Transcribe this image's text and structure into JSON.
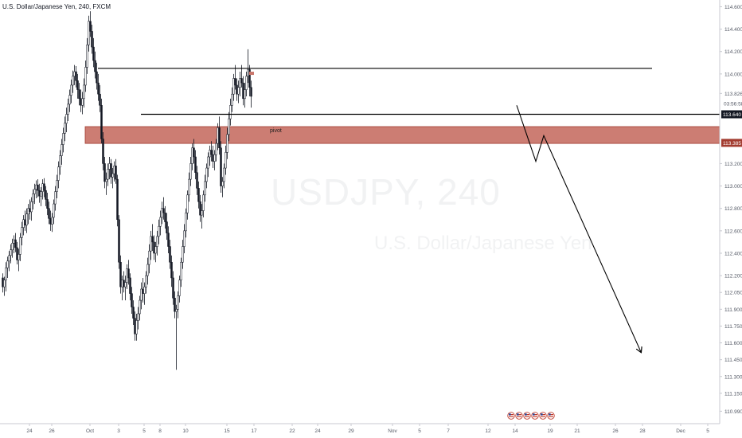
{
  "header": {
    "title": "U.S. Dollar/Japanese Yen, 240, FXCM"
  },
  "watermark": {
    "symbol": "USDJPY, 240",
    "description": "U.S. Dollar/Japanese Yen"
  },
  "colors": {
    "up": "#131722",
    "down": "#131722",
    "zone_fill": "#c9766b",
    "zone_border": "#a23b2f",
    "price_tag_dark": "#131722",
    "price_tag_red": "#a23b2f",
    "axis_text": "#555a66",
    "line": "#000000"
  },
  "chart_data": {
    "type": "candlestick",
    "title": "U.S. Dollar/Japanese Yen, 240, FXCM",
    "xlabel": "",
    "ylabel": "",
    "ylim": [
      110.95,
      114.66
    ],
    "y_ticks": [
      "114.600",
      "114.400",
      "114.200",
      "114.000",
      "113.826",
      "113.200",
      "113.000",
      "112.800",
      "112.600",
      "112.400",
      "112.200",
      "112.050",
      "111.900",
      "111.750",
      "111.600",
      "111.450",
      "111.300",
      "111.150",
      "110.990"
    ],
    "y_tick_values": [
      114.6,
      114.4,
      114.2,
      114.0,
      113.826,
      113.2,
      113.0,
      112.8,
      112.6,
      112.4,
      112.2,
      112.05,
      111.9,
      111.75,
      111.6,
      111.45,
      111.3,
      111.15,
      110.99
    ],
    "x_ticks": [
      "24",
      "26",
      "Oct",
      "3",
      "5",
      "8",
      "10",
      "15",
      "17",
      "22",
      "24",
      "29",
      "Nov",
      "5",
      "7",
      "12",
      "14",
      "19",
      "21",
      "26",
      "28",
      "Dec",
      "5"
    ],
    "x_tick_index": [
      17,
      31,
      55,
      73,
      89,
      99,
      115,
      141,
      158,
      182,
      198,
      219,
      245,
      262,
      280,
      305,
      322,
      344,
      361,
      385,
      402,
      426,
      443
    ],
    "price_labels": {
      "countdown": "03:56:58",
      "current": "113.640",
      "current_value": 113.64,
      "pivot_tag": "113.385",
      "pivot_value": 113.385
    },
    "pivot_zone": {
      "label": "pivot",
      "low": 113.38,
      "high": 113.53,
      "start_index": 52
    },
    "resistance_line": {
      "value": 114.05,
      "start_index": 60,
      "end_index": 408
    },
    "support_line": {
      "value": 113.64,
      "start_index": 87
    },
    "projection_path": [
      {
        "index": 323,
        "price": 113.72
      },
      {
        "index": 335,
        "price": 113.22
      },
      {
        "index": 340,
        "price": 113.45
      },
      {
        "index": 401,
        "price": 111.52
      }
    ],
    "candles": [
      {
        "o": 112.18,
        "h": 112.22,
        "l": 112.05,
        "c": 112.1
      },
      {
        "o": 112.1,
        "h": 112.19,
        "l": 112.02,
        "c": 112.16
      },
      {
        "o": 112.16,
        "h": 112.32,
        "l": 112.06,
        "c": 112.27
      },
      {
        "o": 112.27,
        "h": 112.37,
        "l": 112.18,
        "c": 112.33
      },
      {
        "o": 112.33,
        "h": 112.42,
        "l": 112.24,
        "c": 112.38
      },
      {
        "o": 112.38,
        "h": 112.48,
        "l": 112.31,
        "c": 112.43
      },
      {
        "o": 112.43,
        "h": 112.53,
        "l": 112.36,
        "c": 112.49
      },
      {
        "o": 112.49,
        "h": 112.56,
        "l": 112.4,
        "c": 112.52
      },
      {
        "o": 112.52,
        "h": 112.58,
        "l": 112.41,
        "c": 112.45
      },
      {
        "o": 112.45,
        "h": 112.5,
        "l": 112.3,
        "c": 112.34
      },
      {
        "o": 112.34,
        "h": 112.44,
        "l": 112.24,
        "c": 112.39
      },
      {
        "o": 112.39,
        "h": 112.58,
        "l": 112.33,
        "c": 112.54
      },
      {
        "o": 112.54,
        "h": 112.68,
        "l": 112.47,
        "c": 112.63
      },
      {
        "o": 112.63,
        "h": 112.74,
        "l": 112.56,
        "c": 112.7
      },
      {
        "o": 112.7,
        "h": 112.78,
        "l": 112.6,
        "c": 112.65
      },
      {
        "o": 112.65,
        "h": 112.8,
        "l": 112.58,
        "c": 112.75
      },
      {
        "o": 112.75,
        "h": 112.84,
        "l": 112.66,
        "c": 112.8
      },
      {
        "o": 112.8,
        "h": 112.88,
        "l": 112.7,
        "c": 112.77
      },
      {
        "o": 112.77,
        "h": 112.9,
        "l": 112.69,
        "c": 112.86
      },
      {
        "o": 112.86,
        "h": 112.97,
        "l": 112.79,
        "c": 112.93
      },
      {
        "o": 112.93,
        "h": 113.02,
        "l": 112.84,
        "c": 112.97
      },
      {
        "o": 112.97,
        "h": 113.05,
        "l": 112.89,
        "c": 113.01
      },
      {
        "o": 113.01,
        "h": 113.06,
        "l": 112.9,
        "c": 112.96
      },
      {
        "o": 112.96,
        "h": 113.02,
        "l": 112.85,
        "c": 112.91
      },
      {
        "o": 112.91,
        "h": 112.99,
        "l": 112.82,
        "c": 112.95
      },
      {
        "o": 112.95,
        "h": 113.06,
        "l": 112.88,
        "c": 113.02
      },
      {
        "o": 113.02,
        "h": 113.07,
        "l": 112.9,
        "c": 112.96
      },
      {
        "o": 112.96,
        "h": 113.0,
        "l": 112.82,
        "c": 112.88
      },
      {
        "o": 112.88,
        "h": 112.94,
        "l": 112.74,
        "c": 112.8
      },
      {
        "o": 112.8,
        "h": 112.86,
        "l": 112.66,
        "c": 112.71
      },
      {
        "o": 112.71,
        "h": 112.78,
        "l": 112.6,
        "c": 112.66
      },
      {
        "o": 112.66,
        "h": 112.76,
        "l": 112.59,
        "c": 112.72
      },
      {
        "o": 112.72,
        "h": 112.88,
        "l": 112.66,
        "c": 112.84
      },
      {
        "o": 112.84,
        "h": 113.0,
        "l": 112.78,
        "c": 112.95
      },
      {
        "o": 112.95,
        "h": 113.1,
        "l": 112.89,
        "c": 113.05
      },
      {
        "o": 113.05,
        "h": 113.22,
        "l": 112.98,
        "c": 113.17
      },
      {
        "o": 113.17,
        "h": 113.32,
        "l": 113.1,
        "c": 113.27
      },
      {
        "o": 113.27,
        "h": 113.42,
        "l": 113.19,
        "c": 113.37
      },
      {
        "o": 113.37,
        "h": 113.52,
        "l": 113.3,
        "c": 113.47
      },
      {
        "o": 113.47,
        "h": 113.62,
        "l": 113.4,
        "c": 113.56
      },
      {
        "o": 113.56,
        "h": 113.7,
        "l": 113.48,
        "c": 113.64
      },
      {
        "o": 113.64,
        "h": 113.78,
        "l": 113.58,
        "c": 113.73
      },
      {
        "o": 113.73,
        "h": 113.86,
        "l": 113.66,
        "c": 113.81
      },
      {
        "o": 113.81,
        "h": 113.95,
        "l": 113.74,
        "c": 113.9
      },
      {
        "o": 113.9,
        "h": 114.03,
        "l": 113.83,
        "c": 113.98
      },
      {
        "o": 113.98,
        "h": 114.08,
        "l": 113.9,
        "c": 114.02
      },
      {
        "o": 114.02,
        "h": 114.07,
        "l": 113.88,
        "c": 113.94
      },
      {
        "o": 113.94,
        "h": 114.0,
        "l": 113.78,
        "c": 113.86
      },
      {
        "o": 113.86,
        "h": 113.92,
        "l": 113.72,
        "c": 113.78
      },
      {
        "o": 113.78,
        "h": 113.86,
        "l": 113.66,
        "c": 113.72
      },
      {
        "o": 113.72,
        "h": 113.84,
        "l": 113.64,
        "c": 113.78
      },
      {
        "o": 113.78,
        "h": 113.96,
        "l": 113.7,
        "c": 113.9
      },
      {
        "o": 113.9,
        "h": 114.12,
        "l": 113.84,
        "c": 114.06
      },
      {
        "o": 114.06,
        "h": 114.32,
        "l": 114.0,
        "c": 114.26
      },
      {
        "o": 114.26,
        "h": 114.52,
        "l": 114.2,
        "c": 114.47
      },
      {
        "o": 114.47,
        "h": 114.56,
        "l": 114.33,
        "c": 114.38
      },
      {
        "o": 114.38,
        "h": 114.44,
        "l": 114.18,
        "c": 114.24
      },
      {
        "o": 114.24,
        "h": 114.32,
        "l": 114.06,
        "c": 114.12
      },
      {
        "o": 114.12,
        "h": 114.2,
        "l": 113.96,
        "c": 114.02
      },
      {
        "o": 114.02,
        "h": 114.1,
        "l": 113.86,
        "c": 113.92
      },
      {
        "o": 113.92,
        "h": 114.0,
        "l": 113.76,
        "c": 113.82
      },
      {
        "o": 113.82,
        "h": 113.9,
        "l": 113.66,
        "c": 113.72
      },
      {
        "o": 113.72,
        "h": 113.78,
        "l": 113.38,
        "c": 113.42
      },
      {
        "o": 113.42,
        "h": 113.48,
        "l": 113.14,
        "c": 113.2
      },
      {
        "o": 113.2,
        "h": 113.26,
        "l": 112.98,
        "c": 113.04
      },
      {
        "o": 113.04,
        "h": 113.12,
        "l": 112.92,
        "c": 113.06
      },
      {
        "o": 113.06,
        "h": 113.2,
        "l": 113.0,
        "c": 113.15
      },
      {
        "o": 113.15,
        "h": 113.26,
        "l": 113.06,
        "c": 113.2
      },
      {
        "o": 113.2,
        "h": 113.24,
        "l": 113.02,
        "c": 113.08
      },
      {
        "o": 113.08,
        "h": 113.16,
        "l": 112.98,
        "c": 113.11
      },
      {
        "o": 113.11,
        "h": 113.22,
        "l": 113.04,
        "c": 113.18
      },
      {
        "o": 113.18,
        "h": 113.24,
        "l": 113.02,
        "c": 113.06
      },
      {
        "o": 113.06,
        "h": 113.1,
        "l": 112.64,
        "c": 112.7
      },
      {
        "o": 112.7,
        "h": 112.74,
        "l": 112.26,
        "c": 112.32
      },
      {
        "o": 112.32,
        "h": 112.38,
        "l": 112.04,
        "c": 112.1
      },
      {
        "o": 112.1,
        "h": 112.2,
        "l": 111.98,
        "c": 112.16
      },
      {
        "o": 112.16,
        "h": 112.24,
        "l": 112.05,
        "c": 112.1
      },
      {
        "o": 112.1,
        "h": 112.2,
        "l": 111.98,
        "c": 112.14
      },
      {
        "o": 112.14,
        "h": 112.3,
        "l": 112.08,
        "c": 112.26
      },
      {
        "o": 112.26,
        "h": 112.34,
        "l": 112.12,
        "c": 112.18
      },
      {
        "o": 112.18,
        "h": 112.22,
        "l": 111.98,
        "c": 112.04
      },
      {
        "o": 112.04,
        "h": 112.1,
        "l": 111.86,
        "c": 111.92
      },
      {
        "o": 111.92,
        "h": 111.98,
        "l": 111.76,
        "c": 111.82
      },
      {
        "o": 111.82,
        "h": 111.88,
        "l": 111.62,
        "c": 111.68
      },
      {
        "o": 111.68,
        "h": 111.86,
        "l": 111.62,
        "c": 111.8
      },
      {
        "o": 111.8,
        "h": 111.92,
        "l": 111.72,
        "c": 111.86
      },
      {
        "o": 111.86,
        "h": 112.02,
        "l": 111.8,
        "c": 111.98
      },
      {
        "o": 111.98,
        "h": 112.14,
        "l": 111.9,
        "c": 112.08
      },
      {
        "o": 112.08,
        "h": 112.18,
        "l": 111.96,
        "c": 112.04
      },
      {
        "o": 112.04,
        "h": 112.14,
        "l": 111.94,
        "c": 112.1
      },
      {
        "o": 112.1,
        "h": 112.24,
        "l": 112.04,
        "c": 112.2
      },
      {
        "o": 112.2,
        "h": 112.36,
        "l": 112.12,
        "c": 112.3
      },
      {
        "o": 112.3,
        "h": 112.48,
        "l": 112.22,
        "c": 112.42
      },
      {
        "o": 112.42,
        "h": 112.6,
        "l": 112.34,
        "c": 112.55
      },
      {
        "o": 112.55,
        "h": 112.66,
        "l": 112.42,
        "c": 112.5
      },
      {
        "o": 112.5,
        "h": 112.56,
        "l": 112.34,
        "c": 112.4
      },
      {
        "o": 112.4,
        "h": 112.5,
        "l": 112.32,
        "c": 112.46
      },
      {
        "o": 112.46,
        "h": 112.6,
        "l": 112.38,
        "c": 112.55
      },
      {
        "o": 112.55,
        "h": 112.7,
        "l": 112.48,
        "c": 112.64
      },
      {
        "o": 112.64,
        "h": 112.78,
        "l": 112.56,
        "c": 112.72
      },
      {
        "o": 112.72,
        "h": 112.86,
        "l": 112.66,
        "c": 112.8
      },
      {
        "o": 112.8,
        "h": 112.9,
        "l": 112.7,
        "c": 112.76
      },
      {
        "o": 112.76,
        "h": 112.82,
        "l": 112.62,
        "c": 112.68
      },
      {
        "o": 112.68,
        "h": 112.76,
        "l": 112.52,
        "c": 112.58
      },
      {
        "o": 112.58,
        "h": 112.64,
        "l": 112.4,
        "c": 112.46
      },
      {
        "o": 112.46,
        "h": 112.52,
        "l": 112.26,
        "c": 112.32
      },
      {
        "o": 112.32,
        "h": 112.38,
        "l": 112.1,
        "c": 112.18
      },
      {
        "o": 112.18,
        "h": 112.24,
        "l": 111.94,
        "c": 112.0
      },
      {
        "o": 112.0,
        "h": 112.06,
        "l": 111.82,
        "c": 111.88
      },
      {
        "o": 111.88,
        "h": 111.94,
        "l": 111.36,
        "c": 111.9
      },
      {
        "o": 111.9,
        "h": 112.06,
        "l": 111.82,
        "c": 112.02
      },
      {
        "o": 112.02,
        "h": 112.2,
        "l": 111.96,
        "c": 112.16
      },
      {
        "o": 112.16,
        "h": 112.36,
        "l": 112.1,
        "c": 112.32
      },
      {
        "o": 112.32,
        "h": 112.52,
        "l": 112.26,
        "c": 112.46
      },
      {
        "o": 112.46,
        "h": 112.66,
        "l": 112.4,
        "c": 112.6
      },
      {
        "o": 112.6,
        "h": 112.8,
        "l": 112.54,
        "c": 112.76
      },
      {
        "o": 112.76,
        "h": 112.96,
        "l": 112.7,
        "c": 112.92
      },
      {
        "o": 112.92,
        "h": 113.12,
        "l": 112.86,
        "c": 113.06
      },
      {
        "o": 113.06,
        "h": 113.26,
        "l": 113.0,
        "c": 113.2
      },
      {
        "o": 113.2,
        "h": 113.38,
        "l": 113.14,
        "c": 113.34
      },
      {
        "o": 113.34,
        "h": 113.42,
        "l": 113.2,
        "c": 113.26
      },
      {
        "o": 113.26,
        "h": 113.32,
        "l": 113.06,
        "c": 113.12
      },
      {
        "o": 113.12,
        "h": 113.18,
        "l": 112.92,
        "c": 112.98
      },
      {
        "o": 112.98,
        "h": 113.04,
        "l": 112.8,
        "c": 112.86
      },
      {
        "o": 112.86,
        "h": 112.92,
        "l": 112.68,
        "c": 112.74
      },
      {
        "o": 112.74,
        "h": 112.84,
        "l": 112.62,
        "c": 112.78
      },
      {
        "o": 112.78,
        "h": 112.96,
        "l": 112.72,
        "c": 112.92
      },
      {
        "o": 112.92,
        "h": 113.1,
        "l": 112.86,
        "c": 113.04
      },
      {
        "o": 113.04,
        "h": 113.2,
        "l": 112.98,
        "c": 113.16
      },
      {
        "o": 113.16,
        "h": 113.3,
        "l": 113.08,
        "c": 113.26
      },
      {
        "o": 113.26,
        "h": 113.36,
        "l": 113.18,
        "c": 113.32
      },
      {
        "o": 113.32,
        "h": 113.4,
        "l": 113.22,
        "c": 113.28
      },
      {
        "o": 113.28,
        "h": 113.36,
        "l": 113.16,
        "c": 113.22
      },
      {
        "o": 113.22,
        "h": 113.32,
        "l": 113.14,
        "c": 113.28
      },
      {
        "o": 113.28,
        "h": 113.42,
        "l": 113.22,
        "c": 113.38
      },
      {
        "o": 113.38,
        "h": 113.56,
        "l": 113.32,
        "c": 113.52
      },
      {
        "o": 113.52,
        "h": 113.62,
        "l": 113.28,
        "c": 113.34
      },
      {
        "o": 113.34,
        "h": 113.4,
        "l": 112.94,
        "c": 113.0
      },
      {
        "o": 113.0,
        "h": 113.08,
        "l": 112.9,
        "c": 113.04
      },
      {
        "o": 113.04,
        "h": 113.2,
        "l": 112.98,
        "c": 113.16
      },
      {
        "o": 113.16,
        "h": 113.36,
        "l": 113.1,
        "c": 113.3
      },
      {
        "o": 113.3,
        "h": 113.52,
        "l": 113.24,
        "c": 113.46
      },
      {
        "o": 113.46,
        "h": 113.66,
        "l": 113.4,
        "c": 113.6
      },
      {
        "o": 113.6,
        "h": 113.78,
        "l": 113.54,
        "c": 113.72
      },
      {
        "o": 113.72,
        "h": 113.88,
        "l": 113.66,
        "c": 113.82
      },
      {
        "o": 113.82,
        "h": 114.0,
        "l": 113.76,
        "c": 113.96
      },
      {
        "o": 113.96,
        "h": 114.08,
        "l": 113.86,
        "c": 113.9
      },
      {
        "o": 113.9,
        "h": 113.96,
        "l": 113.76,
        "c": 113.82
      },
      {
        "o": 113.82,
        "h": 113.94,
        "l": 113.74,
        "c": 113.88
      },
      {
        "o": 113.88,
        "h": 114.02,
        "l": 113.8,
        "c": 113.96
      },
      {
        "o": 113.96,
        "h": 114.08,
        "l": 113.88,
        "c": 113.92
      },
      {
        "o": 113.92,
        "h": 113.98,
        "l": 113.72,
        "c": 113.78
      },
      {
        "o": 113.78,
        "h": 113.92,
        "l": 113.7,
        "c": 113.86
      },
      {
        "o": 113.86,
        "h": 114.02,
        "l": 113.8,
        "c": 113.98
      },
      {
        "o": 113.98,
        "h": 114.22,
        "l": 113.92,
        "c": 114.04
      },
      {
        "o": 114.04,
        "h": 114.08,
        "l": 113.8,
        "c": 113.88
      },
      {
        "o": 113.88,
        "h": 113.94,
        "l": 113.7,
        "c": 113.8
      }
    ]
  }
}
